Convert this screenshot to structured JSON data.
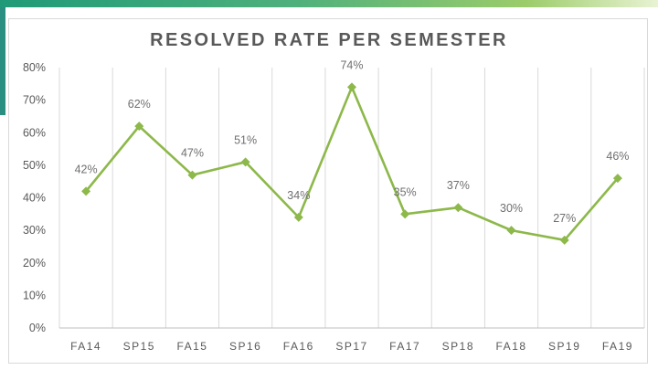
{
  "chart_data": {
    "type": "line",
    "title": "RESOLVED RATE PER SEMESTER",
    "xlabel": "",
    "ylabel": "",
    "categories": [
      "FA14",
      "SP15",
      "FA15",
      "SP16",
      "FA16",
      "SP17",
      "FA17",
      "SP18",
      "FA18",
      "SP19",
      "FA19"
    ],
    "series": [
      {
        "values": [
          42,
          62,
          47,
          51,
          34,
          74,
          35,
          37,
          30,
          27,
          46
        ],
        "data_labels": [
          "42%",
          "62%",
          "47%",
          "51%",
          "34%",
          "74%",
          "35%",
          "37%",
          "30%",
          "27%",
          "46%"
        ]
      }
    ],
    "ylim": [
      0,
      80
    ],
    "yticks": [
      0,
      10,
      20,
      30,
      40,
      50,
      60,
      70,
      80
    ],
    "ytick_labels": [
      "0%",
      "10%",
      "20%",
      "30%",
      "40%",
      "50%",
      "60%",
      "70%",
      "80%"
    ],
    "grid": "vertical",
    "legend": "none",
    "colors": {
      "line": "#8db84a",
      "marker": "#8db84a",
      "grid": "#d9d9d9",
      "text": "#595959"
    }
  }
}
